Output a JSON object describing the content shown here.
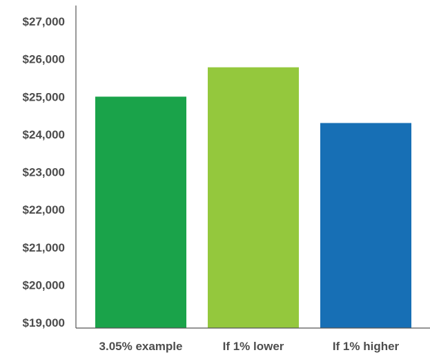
{
  "chart_data": {
    "type": "bar",
    "categories": [
      "3.05% example",
      "If 1% lower",
      "If 1% higher"
    ],
    "values": [
      25000,
      25780,
      24300
    ],
    "colors": [
      "#1aa34a",
      "#94c83d",
      "#176fb5"
    ],
    "ylim": [
      19000,
      27000
    ],
    "yticks": [
      19000,
      20000,
      21000,
      22000,
      23000,
      24000,
      25000,
      26000,
      27000
    ],
    "ytick_labels": [
      "$19,000",
      "$20,000",
      "$21,000",
      "$22,000",
      "$23,000",
      "$24,000",
      "$25,000",
      "$26,000",
      "$27,000"
    ],
    "grid": false,
    "legend": "none"
  }
}
